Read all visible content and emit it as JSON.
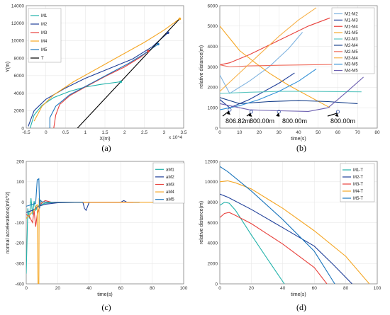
{
  "chart_data": [
    {
      "id": "a",
      "panel_label": "(a)",
      "type": "line",
      "xlabel": "X(m)",
      "ylabel": "Y(m)",
      "x_exponent": "x 10^4",
      "xlim": [
        -0.5,
        3.5
      ],
      "ylim": [
        0,
        14000
      ],
      "xticks": [
        -0.5,
        0,
        0.5,
        1,
        1.5,
        2,
        2.5,
        3,
        3.5
      ],
      "xtick_labels": [
        "-0.5",
        "0",
        "0.5",
        "1",
        "1.5",
        "2",
        "2.5",
        "3",
        "3.5"
      ],
      "yticks": [
        0,
        2000,
        4000,
        6000,
        8000,
        10000,
        12000,
        14000
      ],
      "legend_position": "top-left",
      "series": [
        {
          "name": "M1",
          "color": "#20b2aa",
          "x": [
            -0.4,
            -0.3,
            -0.1,
            0.2,
            0.6,
            1.0,
            1.4,
            1.9
          ],
          "y": [
            0,
            1500,
            2600,
            3500,
            4200,
            4700,
            5000,
            5300
          ]
        },
        {
          "name": "M2",
          "color": "#1f3f99",
          "x": [
            -0.45,
            -0.3,
            0.0,
            0.5,
            1.0,
            1.6,
            2.2,
            2.7,
            3.1
          ],
          "y": [
            200,
            2000,
            3300,
            4600,
            5700,
            6800,
            7900,
            9300,
            10900
          ]
        },
        {
          "name": "M3",
          "color": "#e8413c",
          "x": [
            0.2,
            0.25,
            0.35,
            0.6,
            1.0,
            1.5,
            2.0,
            2.4,
            2.6
          ],
          "y": [
            0,
            1500,
            2700,
            3700,
            4700,
            5900,
            7000,
            8100,
            8800
          ]
        },
        {
          "name": "M4",
          "color": "#f5a623",
          "x": [
            -0.3,
            -0.1,
            0.2,
            0.7,
            1.3,
            1.9,
            2.5,
            3.0,
            3.4
          ],
          "y": [
            800,
            2500,
            3800,
            5300,
            6800,
            8300,
            9800,
            11200,
            12500
          ]
        },
        {
          "name": "M5",
          "color": "#1b75bc",
          "x": [
            0.1,
            0.1,
            0.25,
            0.6,
            1.1,
            1.6,
            2.1,
            2.5,
            2.85
          ],
          "y": [
            0,
            1200,
            2500,
            3800,
            5000,
            6200,
            7400,
            8500,
            9600
          ]
        },
        {
          "name": "T",
          "color": "#000000",
          "x": [
            0.8,
            3.4
          ],
          "y": [
            0,
            12500
          ]
        }
      ]
    },
    {
      "id": "b",
      "panel_label": "(b)",
      "type": "line",
      "xlabel": "time(s)",
      "ylabel": "relative distance(m)",
      "xlim": [
        0,
        80
      ],
      "ylim": [
        0,
        6000
      ],
      "xticks": [
        0,
        10,
        20,
        30,
        40,
        50,
        60,
        70,
        80
      ],
      "yticks": [
        0,
        1000,
        2000,
        3000,
        4000,
        5000,
        6000
      ],
      "legend_position": "top-right",
      "annotations": [
        "806.82m",
        "800.00m",
        "800.00m",
        "800.00m"
      ],
      "series": [
        {
          "name": "M1-M2",
          "color": "#7fb3e0",
          "x": [
            0,
            5,
            15,
            25,
            35,
            42
          ],
          "y": [
            2600,
            1700,
            2300,
            3000,
            3900,
            4700
          ]
        },
        {
          "name": "M1-M3",
          "color": "#1f3f99",
          "x": [
            0,
            5,
            15,
            30,
            38
          ],
          "y": [
            1400,
            1000,
            1400,
            2200,
            2700
          ]
        },
        {
          "name": "M1-M4",
          "color": "#e8413c",
          "x": [
            0,
            5,
            15,
            30,
            45,
            56
          ],
          "y": [
            3100,
            3200,
            3600,
            4300,
            5000,
            5400
          ]
        },
        {
          "name": "M1-M5",
          "color": "#f5a623",
          "x": [
            0,
            5,
            10,
            18,
            25,
            35,
            56
          ],
          "y": [
            5000,
            4400,
            3800,
            3200,
            2700,
            2100,
            1000
          ]
        },
        {
          "name": "M2-M3",
          "color": "#5cc6c0",
          "x": [
            0,
            5,
            15,
            30,
            45,
            60,
            72
          ],
          "y": [
            1700,
            1720,
            1760,
            1800,
            1800,
            1790,
            1780
          ]
        },
        {
          "name": "M2-M4",
          "color": "#163f8a",
          "x": [
            0,
            10,
            25,
            40,
            55,
            70
          ],
          "y": [
            1500,
            1200,
            1300,
            1350,
            1300,
            1200
          ]
        },
        {
          "name": "M2-M5",
          "color": "#ef6a5a",
          "x": [
            0,
            5,
            15,
            30,
            45,
            60,
            73
          ],
          "y": [
            3100,
            3000,
            3050,
            3080,
            3100,
            3120,
            3150
          ]
        },
        {
          "name": "M3-M4",
          "color": "#f7b24a",
          "x": [
            0,
            10,
            20,
            30,
            40,
            49
          ],
          "y": [
            1800,
            2700,
            3600,
            4500,
            5300,
            5900
          ]
        },
        {
          "name": "M3-M5",
          "color": "#2f8fd6",
          "x": [
            0,
            10,
            20,
            30,
            40,
            49
          ],
          "y": [
            900,
            1100,
            1400,
            1800,
            2300,
            2900
          ]
        },
        {
          "name": "M4-M5",
          "color": "#6c5fb0",
          "x": [
            0,
            15,
            30,
            45,
            55,
            60,
            66,
            73
          ],
          "y": [
            1200,
            900,
            850,
            820,
            1000,
            1400,
            1900,
            2500
          ]
        }
      ]
    },
    {
      "id": "c",
      "panel_label": "(c)",
      "type": "line",
      "xlabel": "time(s)",
      "ylabel": "normal accelerations(m/s^2)",
      "xlim": [
        0,
        100
      ],
      "ylim": [
        -400,
        200
      ],
      "xticks": [
        0,
        20,
        40,
        60,
        80,
        100
      ],
      "yticks": [
        -400,
        -300,
        -200,
        -100,
        0,
        100,
        200
      ],
      "legend_position": "top-right",
      "series": [
        {
          "name": "aM1",
          "color": "#20b2aa",
          "x": [
            0,
            1,
            2,
            3,
            4,
            5,
            6,
            8,
            12,
            20,
            40
          ],
          "y": [
            -350,
            -30,
            -80,
            20,
            -60,
            5,
            -40,
            -15,
            -5,
            0,
            0
          ]
        },
        {
          "name": "aM2",
          "color": "#1f3f99",
          "x": [
            0,
            4,
            8,
            12,
            20,
            36,
            37,
            38,
            39,
            40,
            60,
            62,
            64,
            72
          ],
          "y": [
            -50,
            -40,
            -20,
            -10,
            -3,
            0,
            -30,
            -40,
            -20,
            0,
            0,
            8,
            0,
            0
          ]
        },
        {
          "name": "aM3",
          "color": "#e8413c",
          "x": [
            0,
            2,
            4,
            5,
            6,
            7,
            9,
            12,
            16,
            25,
            60,
            68
          ],
          "y": [
            -60,
            -70,
            -100,
            -40,
            -120,
            -60,
            -10,
            8,
            0,
            0,
            0,
            0
          ]
        },
        {
          "name": "aM4",
          "color": "#f5a623",
          "x": [
            0,
            5,
            7,
            7.5,
            8,
            8.2,
            8.5,
            9,
            12,
            20,
            95
          ],
          "y": [
            -80,
            -40,
            -10,
            -400,
            -400,
            20,
            0,
            0,
            0,
            0,
            0
          ]
        },
        {
          "name": "aM5",
          "color": "#1b75bc",
          "x": [
            0,
            4,
            6,
            7,
            8,
            8.5,
            9,
            10,
            14,
            20,
            30,
            36
          ],
          "y": [
            -20,
            -10,
            -5,
            110,
            115,
            -30,
            10,
            2,
            0,
            0,
            0,
            0
          ]
        }
      ]
    },
    {
      "id": "d",
      "panel_label": "(d)",
      "type": "line",
      "xlabel": "time(s)",
      "ylabel": "relative distance(m)",
      "xlim": [
        0,
        100
      ],
      "ylim": [
        0,
        12000
      ],
      "xticks": [
        0,
        20,
        40,
        60,
        80,
        100
      ],
      "yticks": [
        0,
        2000,
        4000,
        6000,
        8000,
        10000,
        12000
      ],
      "legend_position": "top-right",
      "series": [
        {
          "name": "M1-T",
          "color": "#20b2aa",
          "x": [
            0,
            3,
            6,
            10,
            20,
            30,
            41
          ],
          "y": [
            7700,
            8000,
            7900,
            7200,
            4800,
            2500,
            0
          ]
        },
        {
          "name": "M2-T",
          "color": "#1f3f99",
          "x": [
            0,
            5,
            20,
            40,
            60,
            72,
            84
          ],
          "y": [
            8800,
            8500,
            7300,
            5500,
            3700,
            1900,
            0
          ]
        },
        {
          "name": "M3-T",
          "color": "#e8413c",
          "x": [
            0,
            3,
            6,
            10,
            20,
            40,
            60,
            68
          ],
          "y": [
            6500,
            6900,
            7000,
            6700,
            5900,
            3900,
            1600,
            0
          ]
        },
        {
          "name": "M4-T",
          "color": "#f5a623",
          "x": [
            0,
            5,
            10,
            20,
            40,
            60,
            80,
            95
          ],
          "y": [
            10000,
            10100,
            9900,
            9300,
            7400,
            5200,
            2700,
            0
          ]
        },
        {
          "name": "M5-T",
          "color": "#1b75bc",
          "x": [
            0,
            5,
            20,
            40,
            60,
            73
          ],
          "y": [
            11500,
            11000,
            9100,
            6300,
            3200,
            0
          ]
        }
      ]
    }
  ]
}
